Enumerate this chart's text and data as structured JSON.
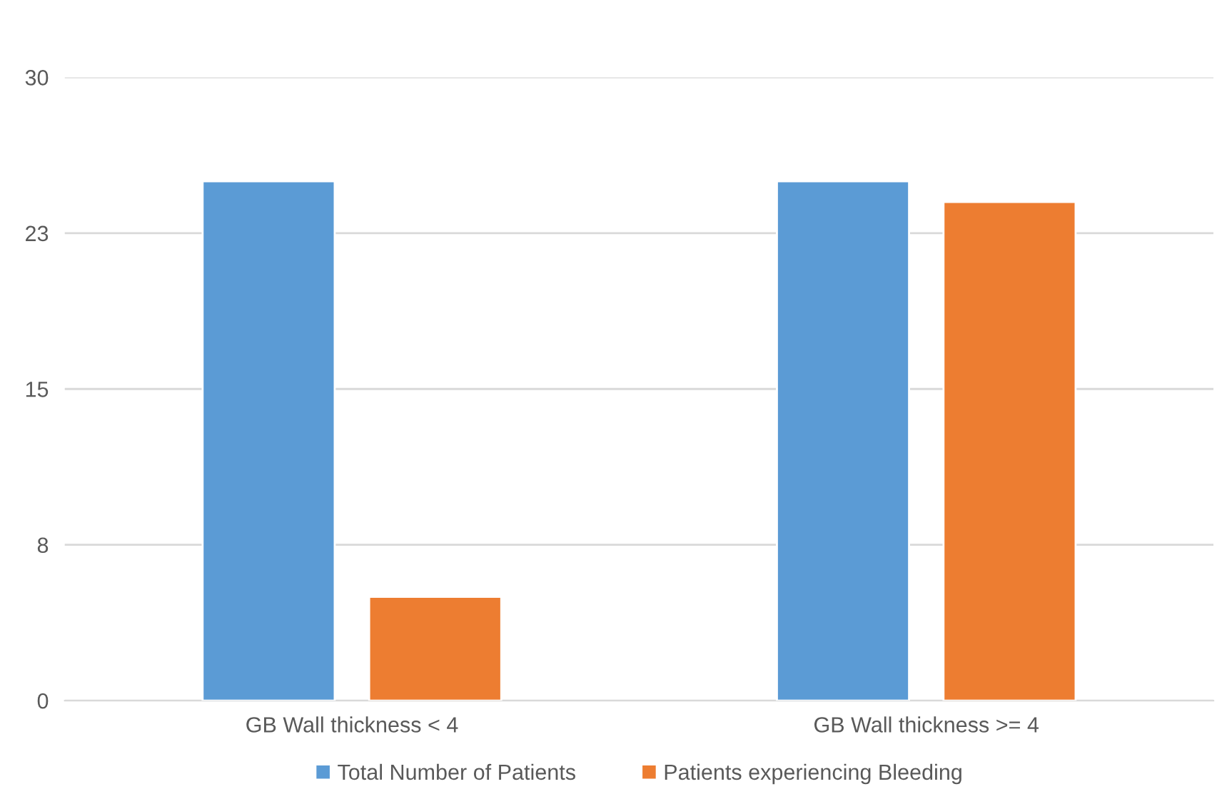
{
  "chart_data": {
    "type": "bar",
    "categories": [
      "GB Wall thickness < 4",
      "GB Wall thickness >= 4"
    ],
    "series": [
      {
        "name": "Total Number of Patients",
        "color": "#5b9bd5",
        "values": [
          25,
          25
        ]
      },
      {
        "name": "Patients experiencing Bleeding",
        "color": "#ed7d31",
        "values": [
          5,
          24
        ]
      }
    ],
    "ylim": [
      0,
      30
    ],
    "yticks": [
      0,
      {
        "value": 7.5,
        "label": "8"
      },
      15,
      {
        "value": 22.5,
        "label": "23"
      },
      30
    ],
    "grid": "y",
    "legend": "bottom"
  }
}
